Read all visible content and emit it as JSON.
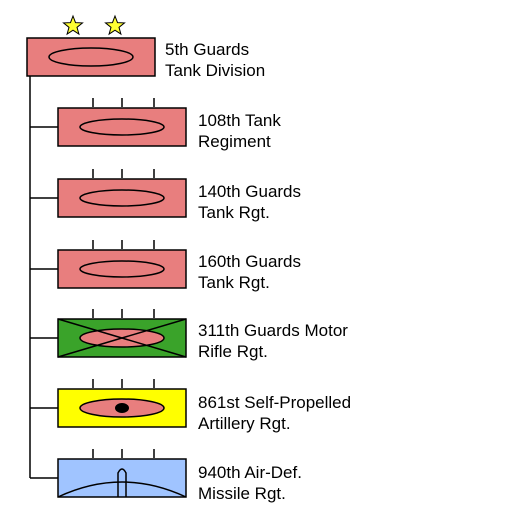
{
  "colors": {
    "armor": "#e87e7e",
    "infantry": "#3aa32a",
    "artillery": "#ffff00",
    "air_defense": "#a0c4ff",
    "star": "#ffff33",
    "line": "#000000"
  },
  "headquarters": {
    "stars": 2,
    "symbol": "armor",
    "name_line1": "5th Guards",
    "name_line2": "Tank Division"
  },
  "units": [
    {
      "symbol": "armor",
      "size_ticks": 3,
      "name_line1": "108th Tank",
      "name_line2": "Regiment"
    },
    {
      "symbol": "armor",
      "size_ticks": 3,
      "name_line1": "140th Guards",
      "name_line2": "Tank Rgt."
    },
    {
      "symbol": "armor",
      "size_ticks": 3,
      "name_line1": "160th Guards",
      "name_line2": "Tank Rgt."
    },
    {
      "symbol": "motor-rifle",
      "size_ticks": 3,
      "name_line1": "311th Guards Motor",
      "name_line2": "Rifle Rgt."
    },
    {
      "symbol": "self-propelled-artillery",
      "size_ticks": 3,
      "name_line1": "861st Self-Propelled",
      "name_line2": "Artillery Rgt."
    },
    {
      "symbol": "air-defense-missile",
      "size_ticks": 3,
      "name_line1": "940th Air-Def.",
      "name_line2": "Missile Rgt."
    }
  ]
}
